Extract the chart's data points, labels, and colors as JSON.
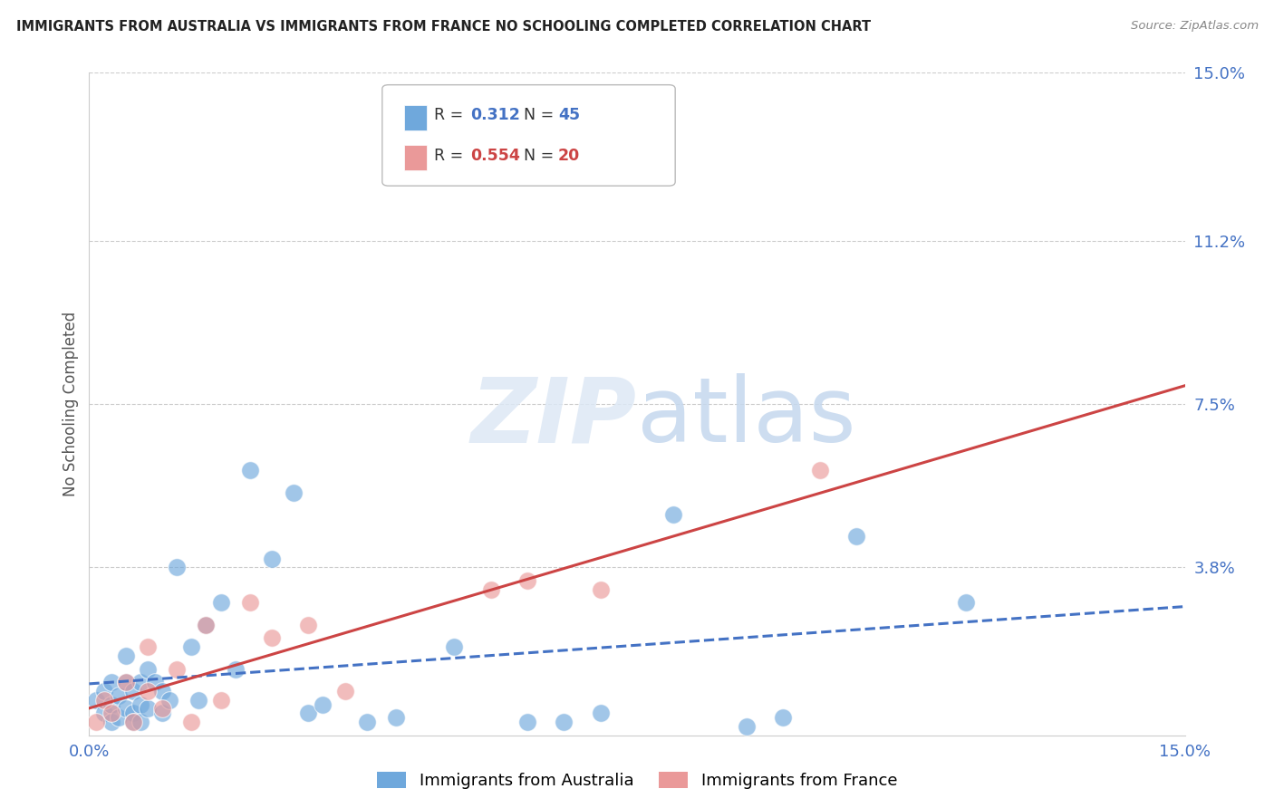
{
  "title": "IMMIGRANTS FROM AUSTRALIA VS IMMIGRANTS FROM FRANCE NO SCHOOLING COMPLETED CORRELATION CHART",
  "source": "Source: ZipAtlas.com",
  "ylabel": "No Schooling Completed",
  "xlim": [
    0,
    0.15
  ],
  "ylim": [
    0,
    0.15
  ],
  "ytick_labels": [
    "15.0%",
    "11.2%",
    "7.5%",
    "3.8%"
  ],
  "ytick_values": [
    0.15,
    0.112,
    0.075,
    0.038
  ],
  "r_australia": 0.312,
  "n_australia": 45,
  "r_france": 0.554,
  "n_france": 20,
  "color_australia": "#6fa8dc",
  "color_france": "#ea9999",
  "color_r_australia": "#4472c4",
  "color_r_france": "#cc4444",
  "color_axis_labels": "#4472c4",
  "title_color": "#222222",
  "background_color": "#ffffff",
  "grid_color": "#cccccc",
  "aus_x": [
    0.001,
    0.002,
    0.002,
    0.003,
    0.003,
    0.003,
    0.004,
    0.004,
    0.005,
    0.005,
    0.005,
    0.006,
    0.006,
    0.006,
    0.007,
    0.007,
    0.007,
    0.008,
    0.008,
    0.009,
    0.01,
    0.01,
    0.011,
    0.012,
    0.014,
    0.015,
    0.016,
    0.018,
    0.02,
    0.022,
    0.025,
    0.028,
    0.03,
    0.032,
    0.038,
    0.042,
    0.05,
    0.06,
    0.065,
    0.07,
    0.08,
    0.09,
    0.095,
    0.105,
    0.12
  ],
  "aus_y": [
    0.008,
    0.01,
    0.005,
    0.012,
    0.007,
    0.003,
    0.009,
    0.004,
    0.012,
    0.006,
    0.018,
    0.01,
    0.005,
    0.003,
    0.012,
    0.007,
    0.003,
    0.015,
    0.006,
    0.012,
    0.01,
    0.005,
    0.008,
    0.038,
    0.02,
    0.008,
    0.025,
    0.03,
    0.015,
    0.06,
    0.04,
    0.055,
    0.005,
    0.007,
    0.003,
    0.004,
    0.02,
    0.003,
    0.003,
    0.005,
    0.05,
    0.002,
    0.004,
    0.045,
    0.03
  ],
  "fra_x": [
    0.001,
    0.002,
    0.003,
    0.005,
    0.006,
    0.008,
    0.008,
    0.01,
    0.012,
    0.014,
    0.016,
    0.018,
    0.022,
    0.025,
    0.03,
    0.035,
    0.055,
    0.06,
    0.07,
    0.1
  ],
  "fra_y": [
    0.003,
    0.008,
    0.005,
    0.012,
    0.003,
    0.01,
    0.02,
    0.006,
    0.015,
    0.003,
    0.025,
    0.008,
    0.03,
    0.022,
    0.025,
    0.01,
    0.033,
    0.035,
    0.033,
    0.06
  ]
}
